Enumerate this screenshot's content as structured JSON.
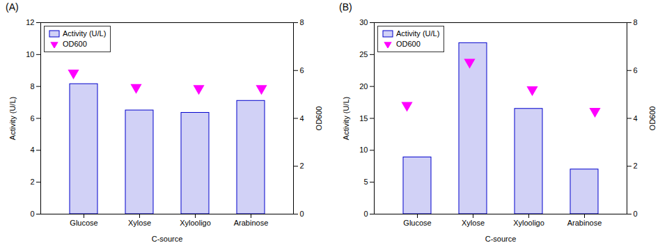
{
  "chart_data": [
    {
      "type": "bar",
      "title": "(A)",
      "categories": [
        "Glucose",
        "Xylose",
        "Xylooligo",
        "Arabinose"
      ],
      "xlabel": "C-source",
      "ylabel": "Activity (U/L)",
      "y2label": "OD600",
      "ylim": [
        0,
        12
      ],
      "yticks": [
        0,
        2,
        4,
        6,
        8,
        10,
        12
      ],
      "y2lim": [
        0,
        8
      ],
      "y2ticks": [
        0,
        2,
        4,
        6,
        8
      ],
      "grid": false,
      "legend": "upper left",
      "series": [
        {
          "name": "Activity (U/L)",
          "type": "bar",
          "color": "#0000CC",
          "values": [
            8.15,
            6.5,
            6.35,
            7.1
          ]
        },
        {
          "name": "OD600",
          "type": "scatter",
          "axis": "y2",
          "color": "#FF00FF",
          "marker": "triangle-down",
          "values": [
            5.9,
            5.3,
            5.25,
            5.25
          ]
        }
      ]
    },
    {
      "type": "bar",
      "title": "(B)",
      "categories": [
        "Glucose",
        "Xylose",
        "Xylooligo",
        "Arabinose"
      ],
      "xlabel": "C-source",
      "ylabel": "Activity (U/L)",
      "y2label": "OD600",
      "ylim": [
        0,
        30
      ],
      "yticks": [
        0,
        5,
        10,
        15,
        20,
        25,
        30
      ],
      "y2lim": [
        0,
        8
      ],
      "y2ticks": [
        0,
        2,
        4,
        6,
        8
      ],
      "grid": false,
      "legend": "upper left",
      "series": [
        {
          "name": "Activity (U/L)",
          "type": "bar",
          "color": "#0000CC",
          "values": [
            8.9,
            26.8,
            16.5,
            7.0
          ]
        },
        {
          "name": "OD600",
          "type": "scatter",
          "axis": "y2",
          "color": "#FF00FF",
          "marker": "triangle-down",
          "values": [
            4.55,
            6.35,
            5.2,
            4.3
          ]
        }
      ]
    }
  ]
}
